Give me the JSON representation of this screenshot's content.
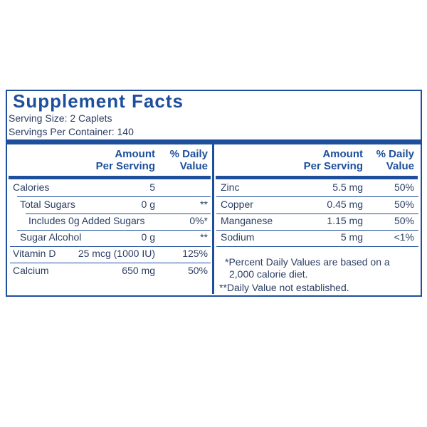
{
  "header": {
    "title": "Supplement Facts",
    "serving_size": "Serving Size: 2 Caplets",
    "servings_per_container": "Servings Per Container: 140"
  },
  "columns": {
    "amount": [
      "Amount",
      "Per Serving"
    ],
    "daily_value": [
      "% Daily",
      "Value"
    ]
  },
  "left_rows": [
    {
      "name": "Calories",
      "amount": "5"
    },
    {
      "name": "Total Sugars",
      "amount": "0 g",
      "daily_value": "**"
    },
    {
      "name": "Includes 0g Added Sugars",
      "daily_value": "0%*"
    },
    {
      "name": "Sugar Alcohol",
      "amount": "0 g",
      "daily_value": "**"
    },
    {
      "name": "Vitamin D",
      "amount": "25 mcg (1000 IU)",
      "daily_value": "125%"
    },
    {
      "name": "Calcium",
      "amount": "650 mg",
      "daily_value": "50%"
    }
  ],
  "right_rows": [
    {
      "name": "Zinc",
      "amount": "5.5 mg",
      "daily_value": "50%"
    },
    {
      "name": "Copper",
      "amount": "0.45 mg",
      "daily_value": "50%"
    },
    {
      "name": "Manganese",
      "amount": "1.15 mg",
      "daily_value": "50%"
    },
    {
      "name": "Sodium",
      "amount": "5 mg",
      "daily_value": "<1%"
    }
  ],
  "footnotes": [
    "*Percent Daily Values are based on a",
    "2,000 calorie diet.",
    "**Daily Value not established."
  ]
}
